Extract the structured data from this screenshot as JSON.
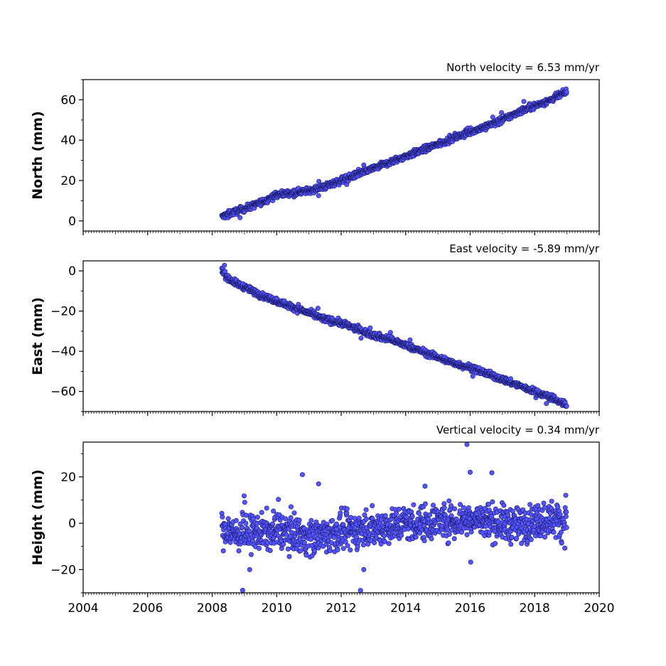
{
  "chart_data": [
    {
      "type": "scatter",
      "title": "North velocity = 6.53 mm/yr",
      "xlabel": "",
      "ylabel": "North (mm)",
      "xlim": [
        2004,
        2020
      ],
      "ylim": [
        -5,
        70
      ],
      "yticks": [
        0,
        20,
        40,
        60
      ],
      "ytick_labels": [
        "0",
        "20",
        "40",
        "60"
      ],
      "series": [
        {
          "x": [
            2008.3,
            2008.6,
            2009.0,
            2009.5,
            2010.0,
            2010.5,
            2011.0,
            2011.5,
            2012.0,
            2012.5,
            2013.0,
            2013.5,
            2014.0,
            2014.5,
            2015.0,
            2015.5,
            2016.0,
            2016.5,
            2017.0,
            2017.5,
            2018.0,
            2018.5,
            2019.0
          ],
          "y": [
            2,
            4,
            6,
            9,
            13,
            14,
            15,
            17,
            20,
            23,
            26,
            29,
            32,
            35,
            38,
            41,
            44,
            47,
            50,
            54,
            57,
            60,
            64
          ]
        }
      ]
    },
    {
      "type": "scatter",
      "title": "East velocity = -5.89 mm/yr",
      "xlabel": "",
      "ylabel": "East (mm)",
      "xlim": [
        2004,
        2020
      ],
      "ylim": [
        -70,
        5
      ],
      "yticks": [
        0,
        -20,
        -40,
        -60
      ],
      "ytick_labels": [
        "0",
        "−20",
        "−40",
        "−60"
      ],
      "series": [
        {
          "x": [
            2008.3,
            2008.4,
            2008.6,
            2009.0,
            2009.5,
            2010.0,
            2010.5,
            2011.0,
            2011.5,
            2012.0,
            2012.5,
            2013.0,
            2013.5,
            2014.0,
            2014.5,
            2015.0,
            2015.5,
            2016.0,
            2016.5,
            2017.0,
            2017.5,
            2018.0,
            2018.5,
            2019.0
          ],
          "y": [
            1,
            -2,
            -5,
            -8,
            -12,
            -15,
            -18,
            -21,
            -24,
            -26,
            -29,
            -32,
            -34,
            -37,
            -40,
            -43,
            -46,
            -48,
            -51,
            -54,
            -57,
            -60,
            -63,
            -67
          ]
        }
      ]
    },
    {
      "type": "scatter",
      "title": "Vertical velocity = 0.34 mm/yr",
      "xlabel": "",
      "ylabel": "Height (mm)",
      "xlim": [
        2004,
        2020
      ],
      "ylim": [
        -30,
        35
      ],
      "yticks": [
        -20,
        0,
        20
      ],
      "ytick_labels": [
        "−20",
        "0",
        "20"
      ],
      "xticks": [
        2004,
        2006,
        2008,
        2010,
        2012,
        2014,
        2016,
        2018,
        2020
      ],
      "xtick_labels": [
        "2004",
        "2006",
        "2008",
        "2010",
        "2012",
        "2014",
        "2016",
        "2018",
        "2020"
      ],
      "series": [
        {
          "x": [
            2008.3,
            2008.6,
            2009.0,
            2009.5,
            2010.0,
            2010.5,
            2011.0,
            2011.5,
            2012.0,
            2012.5,
            2013.0,
            2013.5,
            2014.0,
            2014.5,
            2015.0,
            2015.5,
            2016.0,
            2016.5,
            2017.0,
            2017.5,
            2018.0,
            2018.5,
            2019.0
          ],
          "y": [
            -3,
            -4,
            -5,
            -4,
            -3,
            -4,
            -6,
            -5,
            -4,
            -3,
            -2,
            -1,
            0,
            0,
            1,
            1,
            2,
            1,
            0,
            -1,
            1,
            2,
            0
          ]
        }
      ],
      "outliers": {
        "x": [
          2010.8,
          2011.3,
          2012.7,
          2014.6,
          2015.9,
          2016.0,
          2012.6
        ],
        "y": [
          21,
          17,
          -20,
          16,
          34,
          22,
          -29
        ]
      }
    }
  ],
  "colors": {
    "marker_fill": "#5555ff",
    "marker_edge": "#1a1a66",
    "axis": "#000000"
  }
}
